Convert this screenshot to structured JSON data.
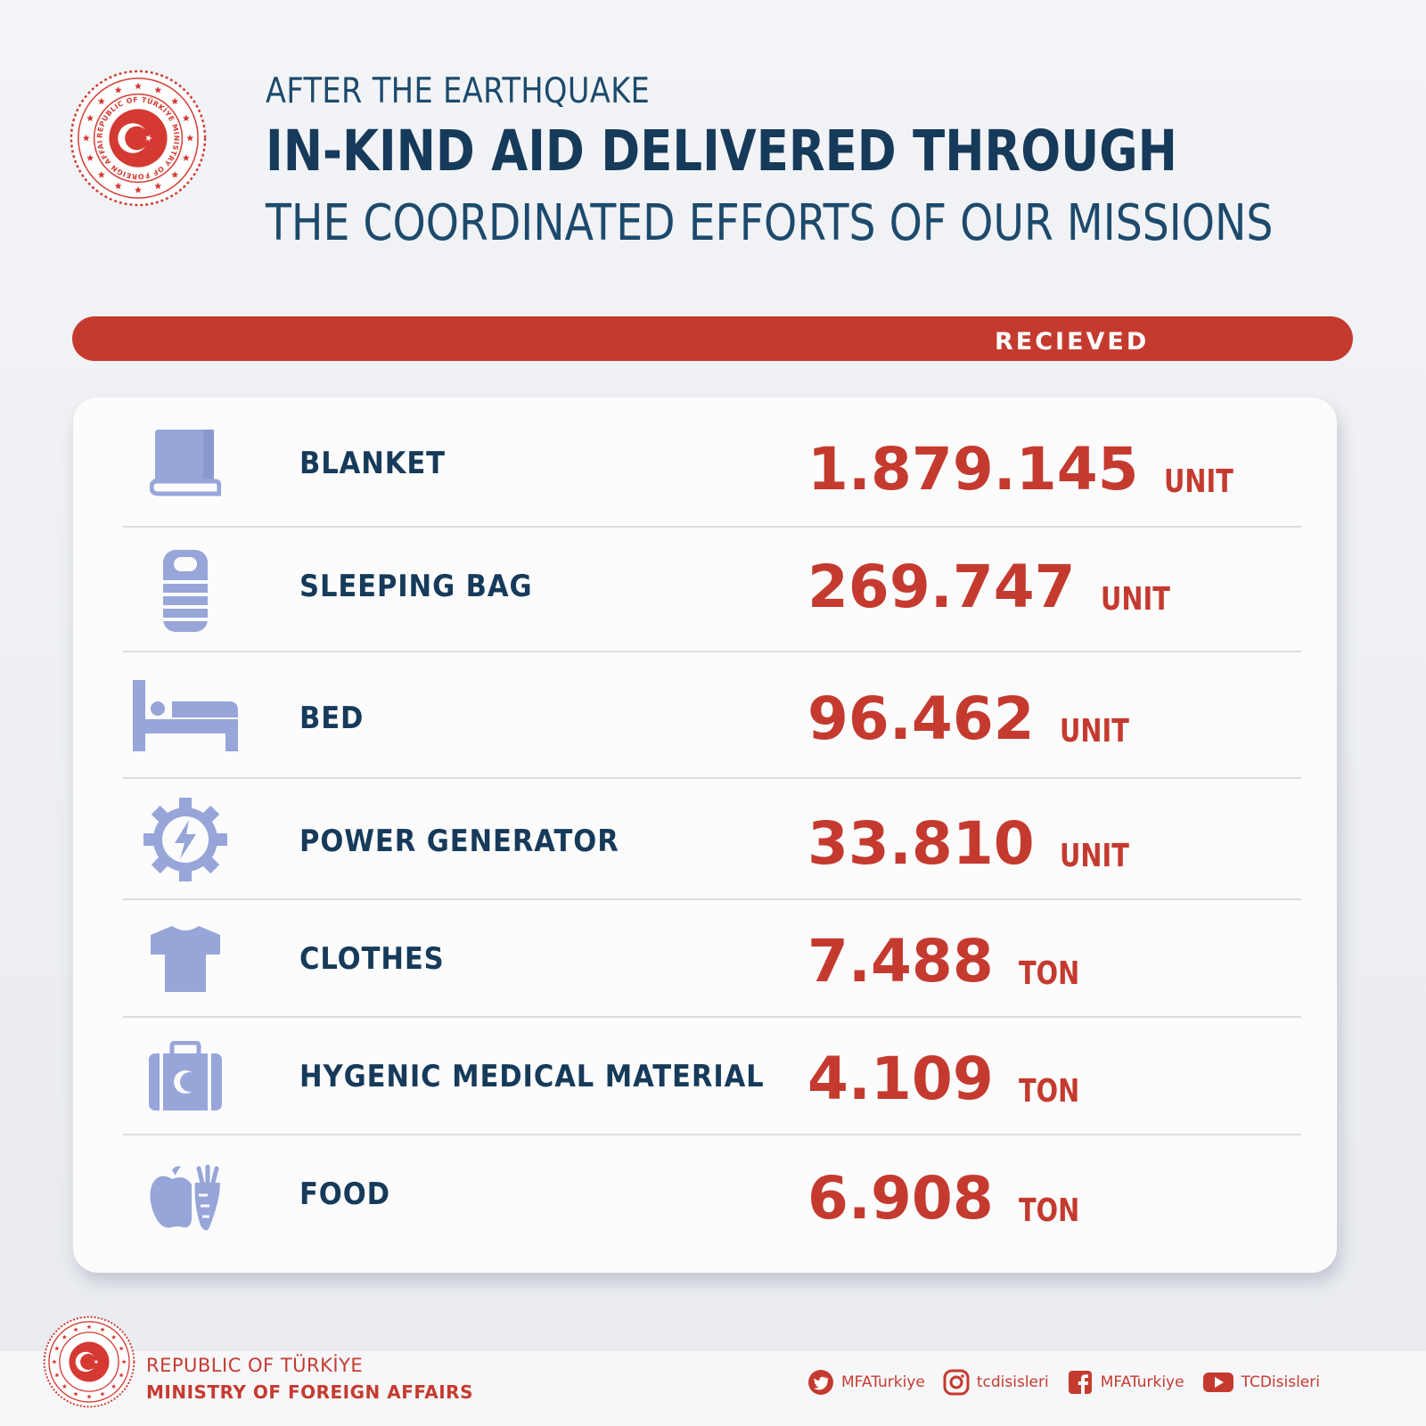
{
  "seal": {
    "ring_text": "REPUBLIC OF TÜRKİYE MINISTRY OF FOREIGN AFFAIRS"
  },
  "header": {
    "line1": "AFTER THE EARTHQUAKE",
    "line2": "IN-KIND AID DELIVERED THROUGH",
    "line3": "THE COORDINATED EFFORTS OF OUR MISSIONS"
  },
  "received_bar": {
    "label": "RECIEVED"
  },
  "items": [
    {
      "icon": "blanket-icon",
      "label": "BLANKET",
      "value": "1.879.145",
      "unit": "UNIT"
    },
    {
      "icon": "sleeping-bag-icon",
      "label": "SLEEPING BAG",
      "value": "269.747",
      "unit": "UNIT"
    },
    {
      "icon": "bed-icon",
      "label": "BED",
      "value": "96.462",
      "unit": "UNIT"
    },
    {
      "icon": "power-generator-icon",
      "label": "POWER GENERATOR",
      "value": "33.810",
      "unit": "UNIT"
    },
    {
      "icon": "tshirt-icon",
      "label": "CLOTHES",
      "value": "7.488",
      "unit": "TON"
    },
    {
      "icon": "medical-kit-icon",
      "label": "HYGENIC MEDICAL MATERIAL",
      "value": "4.109",
      "unit": "TON"
    },
    {
      "icon": "food-icon",
      "label": "FOOD",
      "value": "6.908",
      "unit": "TON"
    }
  ],
  "footer": {
    "ministry_line1": "REPUBLIC OF TÜRKİYE",
    "ministry_line2": "MINISTRY OF FOREIGN AFFAIRS",
    "socials": [
      {
        "icon": "twitter-icon",
        "handle": "MFATurkiye"
      },
      {
        "icon": "instagram-icon",
        "handle": "tcdisisleri"
      },
      {
        "icon": "facebook-icon",
        "handle": "MFATurkiye"
      },
      {
        "icon": "youtube-icon",
        "handle": "TCDisisleri"
      }
    ]
  },
  "colors": {
    "brand_red": "#c53a2f",
    "navy": "#163a5a",
    "icon_blue": "#97a5d9",
    "background": "#eef0f3"
  }
}
